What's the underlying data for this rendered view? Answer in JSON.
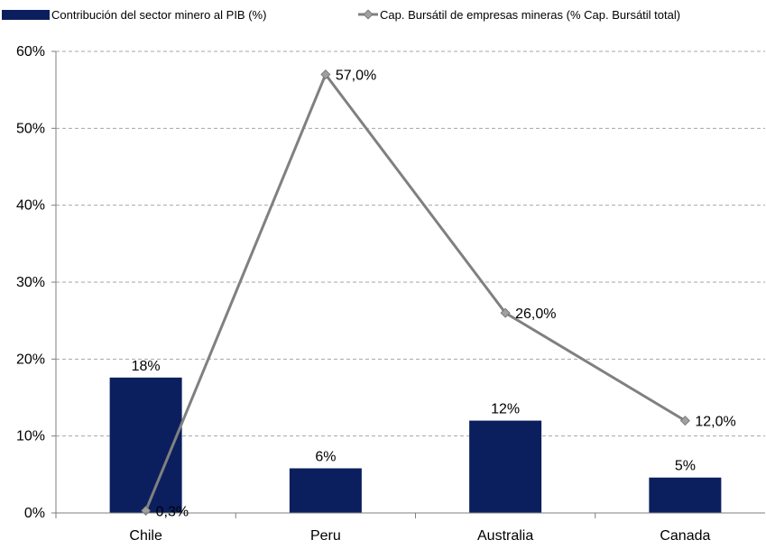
{
  "chart_data": {
    "type": "bar",
    "categories": [
      "Chile",
      "Peru",
      "Australia",
      "Canada"
    ],
    "ylim": [
      0,
      60
    ],
    "y_ticks": [
      "0%",
      "10%",
      "20%",
      "30%",
      "40%",
      "50%",
      "60%"
    ],
    "grid": true,
    "legend_position": "top",
    "series": [
      {
        "name": "Contribución del sector minero al PIB (%)",
        "type": "bar",
        "color": "#0b1f5e",
        "values": [
          17.6,
          5.8,
          12.0,
          4.6
        ],
        "labels": [
          "18%",
          "6%",
          "12%",
          "5%"
        ]
      },
      {
        "name": "Cap. Bursátil de empresas mineras (% Cap. Bursátil total)",
        "type": "line",
        "color": "#808080",
        "values": [
          0.3,
          57.0,
          26.0,
          12.0
        ],
        "labels": [
          "0,3%",
          "57,0%",
          "26,0%",
          "12,0%"
        ]
      }
    ]
  }
}
